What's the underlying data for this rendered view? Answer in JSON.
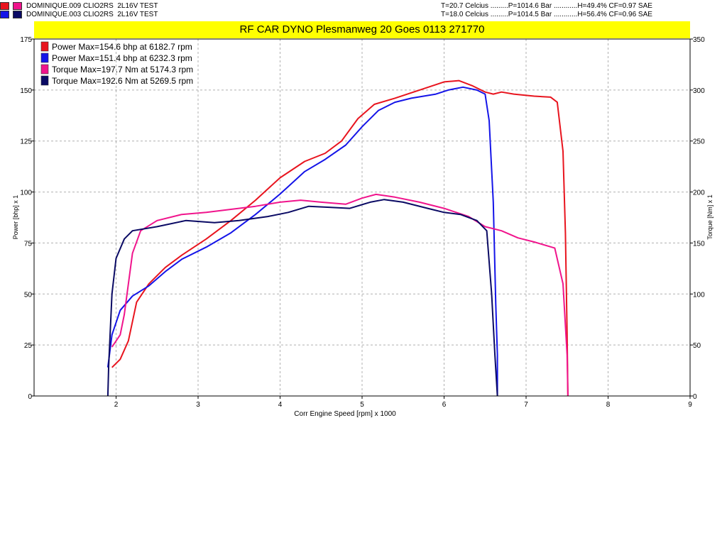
{
  "header": {
    "runs": [
      {
        "colors": [
          "#e8141e",
          "#f0148c"
        ],
        "name": "DOMINIQUE.009 CLIO2RS",
        "desc": "2L16V TEST",
        "conditions": "T=20.7 Celcius .........P=1014.6 Bar ............H=49.4% CF=0.97 SAE"
      },
      {
        "colors": [
          "#1414e8",
          "#0a0a64"
        ],
        "name": "DOMINIQUE.003 CLIO2RS",
        "desc": "2L16V TEST",
        "conditions": "T=18.0 Celcius .........P=1014.5 Bar ............H=56.4% CF=0.96 SAE"
      }
    ],
    "banner": "RF CAR DYNO  Plesmanweg 20 Goes  0113 271770",
    "banner_color": "#ffff00"
  },
  "chart_data": {
    "type": "line",
    "xlabel": "Corr Engine Speed [rpm] x 1000",
    "ylabel": "Power [bhp] x 1",
    "y2label": "Torque [Nm] x 1",
    "xlim": [
      1,
      9
    ],
    "ylim": [
      0,
      175
    ],
    "y2lim": [
      0,
      350
    ],
    "x_ticks": [
      2,
      3,
      4,
      5,
      6,
      7,
      8,
      9
    ],
    "y_ticks": [
      0,
      25,
      50,
      75,
      100,
      125,
      150,
      175
    ],
    "y2_ticks": [
      0,
      50,
      100,
      150,
      200,
      250,
      300,
      350
    ],
    "grid": true,
    "legend_position": "top-left",
    "series": [
      {
        "name": "Power  Max=154.6 bhp at 6182.7 rpm",
        "color": "#e8141e",
        "axis": "left",
        "points": [
          [
            1.95,
            14
          ],
          [
            2.05,
            18
          ],
          [
            2.15,
            27
          ],
          [
            2.25,
            46
          ],
          [
            2.4,
            55
          ],
          [
            2.6,
            63
          ],
          [
            2.8,
            69
          ],
          [
            3.1,
            77
          ],
          [
            3.4,
            86
          ],
          [
            3.7,
            96
          ],
          [
            4.0,
            107
          ],
          [
            4.3,
            115
          ],
          [
            4.55,
            119
          ],
          [
            4.75,
            125
          ],
          [
            4.95,
            136
          ],
          [
            5.15,
            143
          ],
          [
            5.4,
            146
          ],
          [
            5.7,
            150
          ],
          [
            6.0,
            154
          ],
          [
            6.18,
            154.6
          ],
          [
            6.35,
            152
          ],
          [
            6.5,
            149
          ],
          [
            6.6,
            148
          ],
          [
            6.7,
            149
          ],
          [
            6.85,
            148
          ],
          [
            7.1,
            147
          ],
          [
            7.3,
            146.5
          ],
          [
            7.38,
            144
          ],
          [
            7.45,
            120
          ],
          [
            7.48,
            80
          ],
          [
            7.5,
            30
          ],
          [
            7.51,
            0
          ]
        ]
      },
      {
        "name": "Power  Max=151.4 bhp at 6232.3 rpm",
        "color": "#1414e8",
        "axis": "left",
        "points": [
          [
            1.9,
            14
          ],
          [
            1.95,
            30
          ],
          [
            2.05,
            42
          ],
          [
            2.2,
            49
          ],
          [
            2.4,
            54
          ],
          [
            2.6,
            61
          ],
          [
            2.8,
            67
          ],
          [
            3.1,
            73
          ],
          [
            3.4,
            80
          ],
          [
            3.7,
            89
          ],
          [
            4.0,
            99
          ],
          [
            4.3,
            110
          ],
          [
            4.55,
            116
          ],
          [
            4.8,
            123
          ],
          [
            5.0,
            132
          ],
          [
            5.2,
            140
          ],
          [
            5.4,
            144
          ],
          [
            5.6,
            146
          ],
          [
            5.9,
            148
          ],
          [
            6.05,
            150
          ],
          [
            6.23,
            151.4
          ],
          [
            6.4,
            150
          ],
          [
            6.5,
            148
          ],
          [
            6.55,
            135
          ],
          [
            6.6,
            95
          ],
          [
            6.63,
            45
          ],
          [
            6.65,
            20
          ],
          [
            6.65,
            0
          ]
        ]
      },
      {
        "name": "Torque  Max=197.7 Nm at 5174.3 rpm",
        "color": "#f0148c",
        "axis": "right",
        "points": [
          [
            1.95,
            48
          ],
          [
            2.05,
            60
          ],
          [
            2.1,
            80
          ],
          [
            2.2,
            140
          ],
          [
            2.3,
            162
          ],
          [
            2.5,
            172
          ],
          [
            2.8,
            178
          ],
          [
            3.1,
            180
          ],
          [
            3.4,
            183
          ],
          [
            3.7,
            186
          ],
          [
            4.0,
            190
          ],
          [
            4.25,
            192
          ],
          [
            4.5,
            190
          ],
          [
            4.8,
            188
          ],
          [
            5.0,
            194
          ],
          [
            5.17,
            197.7
          ],
          [
            5.4,
            195
          ],
          [
            5.7,
            190
          ],
          [
            6.0,
            184
          ],
          [
            6.3,
            176
          ],
          [
            6.5,
            166
          ],
          [
            6.7,
            162
          ],
          [
            6.9,
            155
          ],
          [
            7.1,
            151
          ],
          [
            7.35,
            145
          ],
          [
            7.45,
            110
          ],
          [
            7.5,
            40
          ],
          [
            7.51,
            0
          ]
        ]
      },
      {
        "name": "Torque  Max=192.6 Nm at 5269.5 rpm",
        "color": "#0a0a64",
        "axis": "right",
        "points": [
          [
            1.9,
            0
          ],
          [
            1.91,
            30
          ],
          [
            1.95,
            100
          ],
          [
            2.0,
            135
          ],
          [
            2.1,
            154
          ],
          [
            2.2,
            162
          ],
          [
            2.5,
            166
          ],
          [
            2.85,
            172
          ],
          [
            3.2,
            170
          ],
          [
            3.5,
            172
          ],
          [
            3.85,
            176
          ],
          [
            4.1,
            180
          ],
          [
            4.35,
            186
          ],
          [
            4.6,
            185
          ],
          [
            4.85,
            184
          ],
          [
            5.1,
            190
          ],
          [
            5.27,
            192.6
          ],
          [
            5.5,
            190
          ],
          [
            5.8,
            184
          ],
          [
            6.0,
            180
          ],
          [
            6.2,
            178
          ],
          [
            6.4,
            172
          ],
          [
            6.52,
            162
          ],
          [
            6.58,
            100
          ],
          [
            6.62,
            40
          ],
          [
            6.65,
            0
          ]
        ]
      }
    ]
  }
}
